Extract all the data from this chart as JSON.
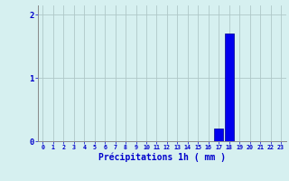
{
  "hours": [
    0,
    1,
    2,
    3,
    4,
    5,
    6,
    7,
    8,
    9,
    10,
    11,
    12,
    13,
    14,
    15,
    16,
    17,
    18,
    19,
    20,
    21,
    22,
    23
  ],
  "values": [
    0,
    0,
    0,
    0,
    0,
    0,
    0,
    0,
    0,
    0,
    0,
    0,
    0,
    0,
    0,
    0,
    0,
    0.2,
    1.7,
    0,
    0,
    0,
    0,
    0
  ],
  "bar_color": "#0000ee",
  "bar_edge_color": "#00008b",
  "background_color": "#d6f0f0",
  "grid_color": "#afc8c8",
  "xlabel": "Précipitations 1h ( mm )",
  "xlabel_color": "#0000cc",
  "tick_color": "#0000cc",
  "ylim": [
    0,
    2.15
  ],
  "yticks": [
    0,
    1,
    2
  ],
  "xlim": [
    -0.5,
    23.5
  ]
}
